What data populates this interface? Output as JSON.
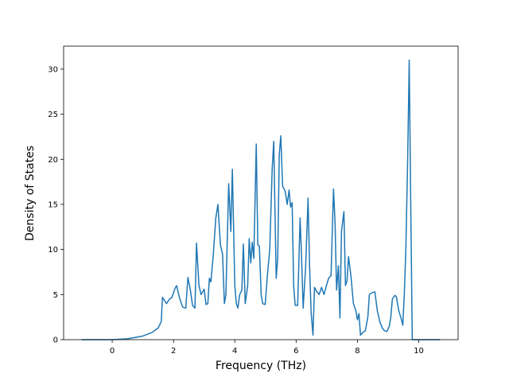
{
  "chart_data": {
    "type": "line",
    "x_label": "Frequency (THz)",
    "y_label": "Density of States",
    "xlim": [
      -1.585,
      11.285
    ],
    "ylim": [
      0,
      32.55
    ],
    "xticks": [
      0,
      2,
      4,
      6,
      8,
      10
    ],
    "yticks": [
      0,
      5,
      10,
      15,
      20,
      25,
      30
    ],
    "x": [
      -1.0,
      -0.5,
      0.0,
      0.5,
      1.0,
      1.3,
      1.5,
      1.6,
      1.64,
      1.77,
      1.87,
      1.95,
      2.05,
      2.1,
      2.2,
      2.3,
      2.4,
      2.47,
      2.55,
      2.62,
      2.7,
      2.75,
      2.83,
      2.9,
      3.0,
      3.06,
      3.12,
      3.17,
      3.22,
      3.3,
      3.38,
      3.45,
      3.53,
      3.6,
      3.66,
      3.71,
      3.8,
      3.87,
      3.92,
      4.0,
      4.05,
      4.1,
      4.16,
      4.23,
      4.28,
      4.34,
      4.42,
      4.47,
      4.52,
      4.57,
      4.62,
      4.7,
      4.75,
      4.8,
      4.86,
      4.91,
      4.99,
      5.06,
      5.14,
      5.22,
      5.27,
      5.35,
      5.4,
      5.45,
      5.5,
      5.56,
      5.64,
      5.71,
      5.77,
      5.82,
      5.87,
      5.92,
      5.97,
      6.05,
      6.13,
      6.18,
      6.23,
      6.31,
      6.39,
      6.44,
      6.49,
      6.55,
      6.6,
      6.68,
      6.75,
      6.83,
      6.91,
      6.99,
      7.06,
      7.14,
      7.22,
      7.27,
      7.32,
      7.38,
      7.43,
      7.48,
      7.56,
      7.61,
      7.66,
      7.71,
      7.79,
      7.87,
      7.95,
      8.0,
      8.05,
      8.1,
      8.18,
      8.26,
      8.34,
      8.39,
      8.47,
      8.57,
      8.65,
      8.73,
      8.81,
      8.88,
      8.96,
      9.04,
      9.09,
      9.14,
      9.22,
      9.27,
      9.35,
      9.43,
      9.48,
      9.53,
      9.58,
      9.64,
      9.69,
      9.74,
      9.79,
      10.2,
      10.7
    ],
    "series": [
      {
        "color": "#1f77b4",
        "values": [
          0,
          0,
          0,
          0.1,
          0.4,
          0.8,
          1.3,
          2.0,
          4.7,
          4.0,
          4.5,
          4.7,
          5.7,
          6.0,
          4.6,
          3.6,
          3.5,
          6.9,
          5.5,
          3.8,
          3.5,
          10.7,
          6.0,
          5.0,
          5.6,
          3.9,
          4.0,
          6.8,
          6.4,
          9.5,
          13.5,
          15.0,
          10.5,
          9.5,
          4.0,
          5.0,
          17.3,
          12.0,
          18.9,
          6.0,
          4.0,
          3.5,
          5.0,
          5.5,
          10.6,
          4.0,
          6.0,
          11.2,
          8.5,
          10.8,
          9.0,
          21.7,
          10.5,
          10.4,
          5.0,
          4.0,
          3.9,
          7.0,
          10.0,
          19.0,
          22.0,
          6.8,
          9.0,
          20.5,
          22.6,
          17.0,
          16.5,
          15.0,
          16.6,
          14.7,
          15.2,
          6.0,
          3.8,
          3.8,
          13.5,
          9.0,
          3.5,
          8.0,
          15.7,
          8.0,
          3.0,
          0.5,
          5.8,
          5.3,
          5.0,
          5.8,
          5.0,
          6.0,
          6.8,
          7.1,
          16.7,
          13.0,
          5.5,
          8.2,
          2.4,
          12.0,
          14.2,
          6.0,
          6.5,
          9.2,
          7.0,
          4.0,
          3.2,
          2.2,
          2.9,
          0.5,
          0.8,
          1.0,
          2.5,
          5.0,
          5.2,
          5.3,
          3.2,
          2.0,
          1.3,
          1.0,
          0.9,
          1.5,
          2.5,
          4.5,
          4.9,
          4.8,
          3.2,
          2.3,
          1.6,
          5.0,
          10.0,
          20.0,
          31.0,
          15.0,
          0,
          0,
          0
        ]
      }
    ]
  }
}
